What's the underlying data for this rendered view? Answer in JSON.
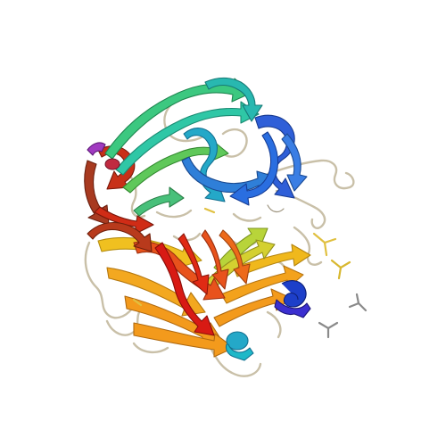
{
  "image": {
    "background": "#ffffff",
    "palette": {
      "blue": "#2f5fd8",
      "deep_blue": "#1d3fc9",
      "cyan": "#24a8c8",
      "teal": "#2fc7a6",
      "green": "#5fc85a",
      "yellow_green": "#b8d43a",
      "yellow": "#f0c020",
      "orange": "#f39a1c",
      "red_orange": "#e8521c",
      "red": "#d81a14",
      "brown_red": "#a83a20",
      "coil": "#c9c0a8",
      "ligand_yellow": "#e0c040",
      "ligand_gray": "#8a8a8a"
    }
  }
}
